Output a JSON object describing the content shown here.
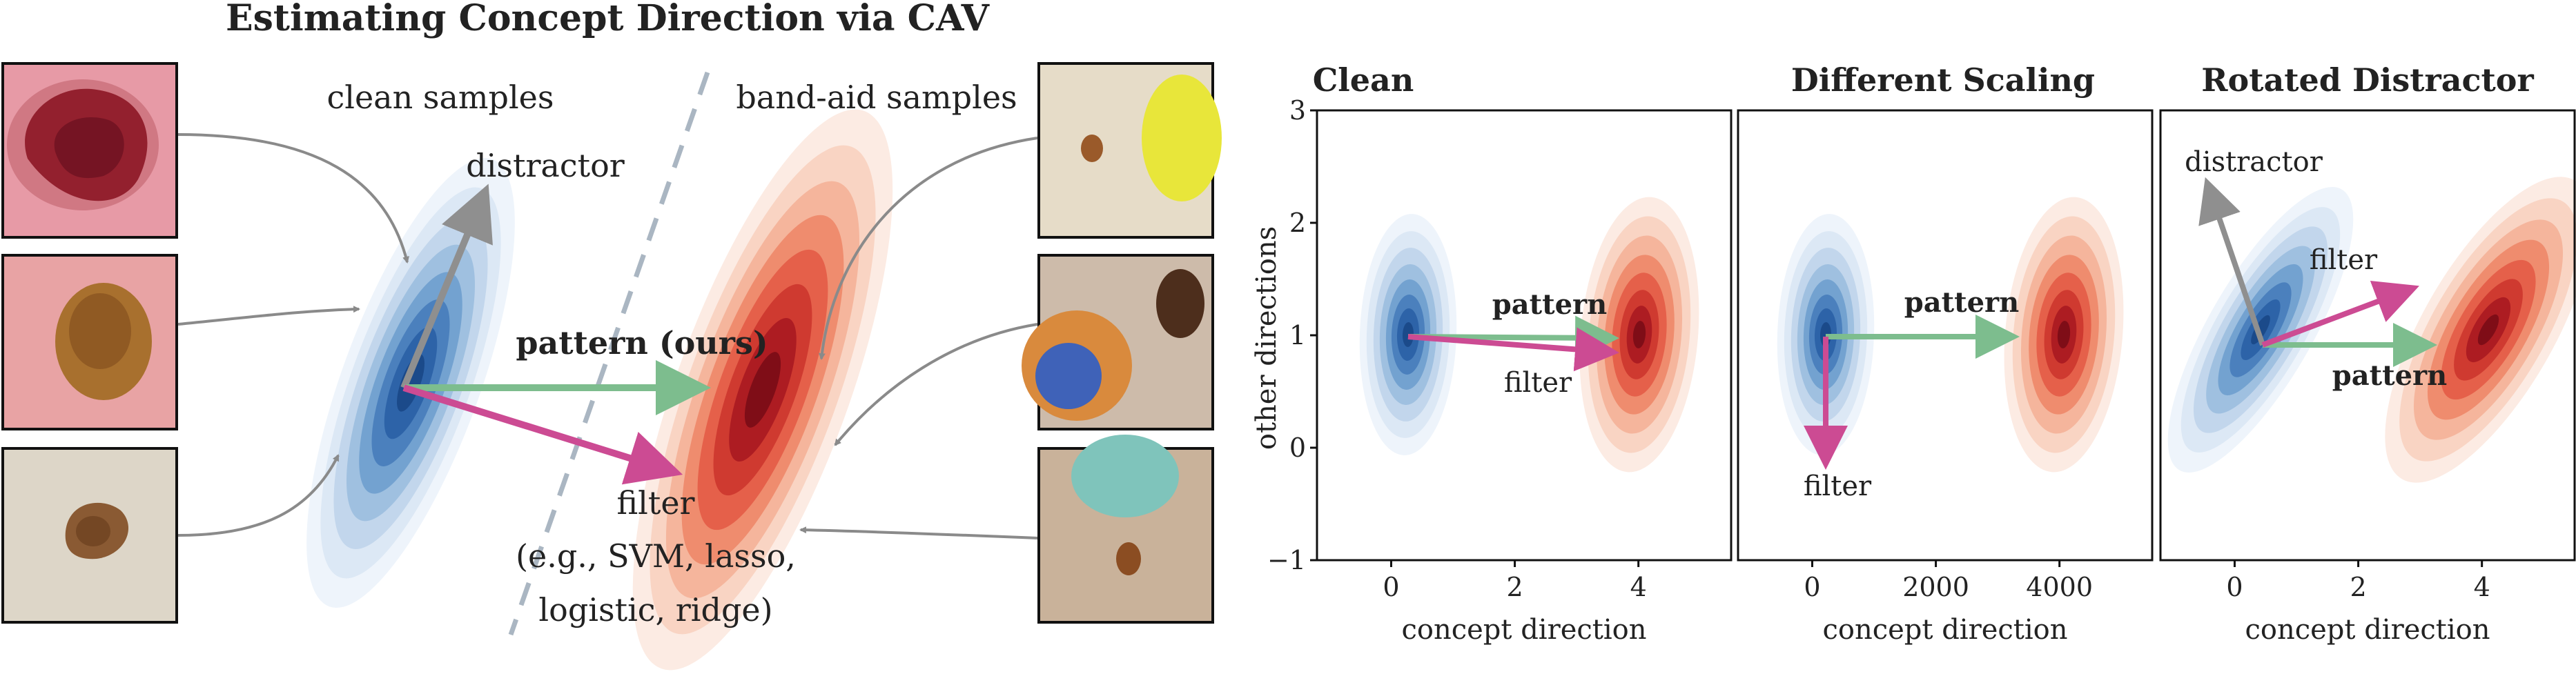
{
  "left": {
    "title": "Estimating Concept Direction via CAV",
    "clean_label": "clean samples",
    "bandaid_label": "band-aid samples",
    "distractor_label": "distractor",
    "pattern_label": "pattern (ours)",
    "filter_label": "filter",
    "filter_examples_line1": "(e.g., SVM, lasso,",
    "filter_examples_line2": "logistic, ridge)"
  },
  "right": {
    "ylabel": "other directions",
    "panels": [
      {
        "title": "Clean",
        "xlabel": "concept direction",
        "xticks": [
          "0",
          "2",
          "4"
        ],
        "xlim": [
          -1.2,
          5.5
        ],
        "ylim": [
          -1,
          3
        ],
        "yticks": [
          "3",
          "2",
          "1",
          "0",
          "−1"
        ],
        "pattern_label": "pattern",
        "filter_label": "filter"
      },
      {
        "title": "Different Scaling",
        "xlabel": "concept direction",
        "xticks": [
          "0",
          "2000",
          "4000"
        ],
        "xlim": [
          -1200,
          5500
        ],
        "ylim": [
          -1,
          3
        ],
        "pattern_label": "pattern",
        "filter_label": "filter"
      },
      {
        "title": "Rotated Distractor",
        "xlabel": "concept direction",
        "xticks": [
          "0",
          "2",
          "4"
        ],
        "xlim": [
          -1.2,
          5.5
        ],
        "ylim": [
          -1,
          3
        ],
        "distractor_label": "distractor",
        "filter_label": "filter",
        "pattern_label": "pattern"
      }
    ]
  },
  "colors": {
    "pattern_arrow": "#7dbd8e",
    "filter_arrow": "#cc4b93",
    "distractor_arrow": "#8f8f8f",
    "clean_density": "#1f5ca8",
    "bandaid_density": "#b5121b",
    "leader_lines": "#8a8a8a",
    "divider": "#aab6c2"
  }
}
